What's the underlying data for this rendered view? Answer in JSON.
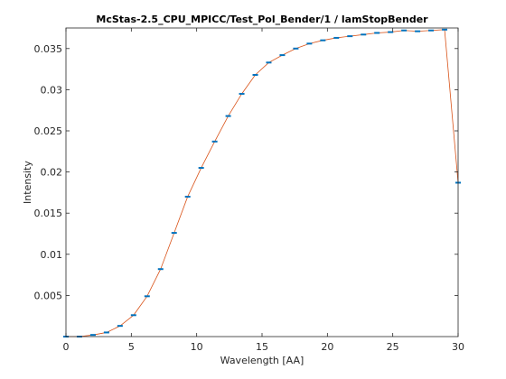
{
  "chart_data": {
    "type": "line",
    "title": "McStas-2.5_CPU_MPICC/Test_Pol_Bender/1 / lamStopBender",
    "xlabel": "Wavelength [AA]",
    "ylabel": "Intensity",
    "xlim": [
      0,
      30
    ],
    "ylim": [
      0,
      0.0375
    ],
    "xticks": [
      0,
      5,
      10,
      15,
      20,
      25,
      30
    ],
    "yticks": [
      0.005,
      0.01,
      0.015,
      0.02,
      0.025,
      0.03,
      0.035
    ],
    "ytick_labels": [
      "0.005",
      "0.01",
      "0.015",
      "0.02",
      "0.025",
      "0.03",
      "0.035"
    ],
    "grid": false,
    "line_color": "#d95319",
    "marker_color": "#0072bd",
    "series": [
      {
        "x": [
          0,
          1.034,
          2.069,
          3.103,
          4.138,
          5.172,
          6.207,
          7.241,
          8.276,
          9.31,
          10.345,
          11.379,
          12.414,
          13.448,
          14.483,
          15.517,
          16.552,
          17.586,
          18.621,
          19.655,
          20.69,
          21.724,
          22.759,
          23.793,
          24.828,
          25.862,
          26.897,
          27.931,
          28.966,
          30
        ],
        "values": [
          0.0,
          0.0,
          0.0002,
          0.0005,
          0.0013,
          0.0026,
          0.0049,
          0.0082,
          0.0126,
          0.017,
          0.0205,
          0.0237,
          0.0268,
          0.0295,
          0.0318,
          0.0333,
          0.0342,
          0.035,
          0.0356,
          0.036,
          0.0363,
          0.0365,
          0.0367,
          0.0369,
          0.037,
          0.0372,
          0.0371,
          0.0372,
          0.0373,
          0.0187
        ]
      }
    ]
  }
}
